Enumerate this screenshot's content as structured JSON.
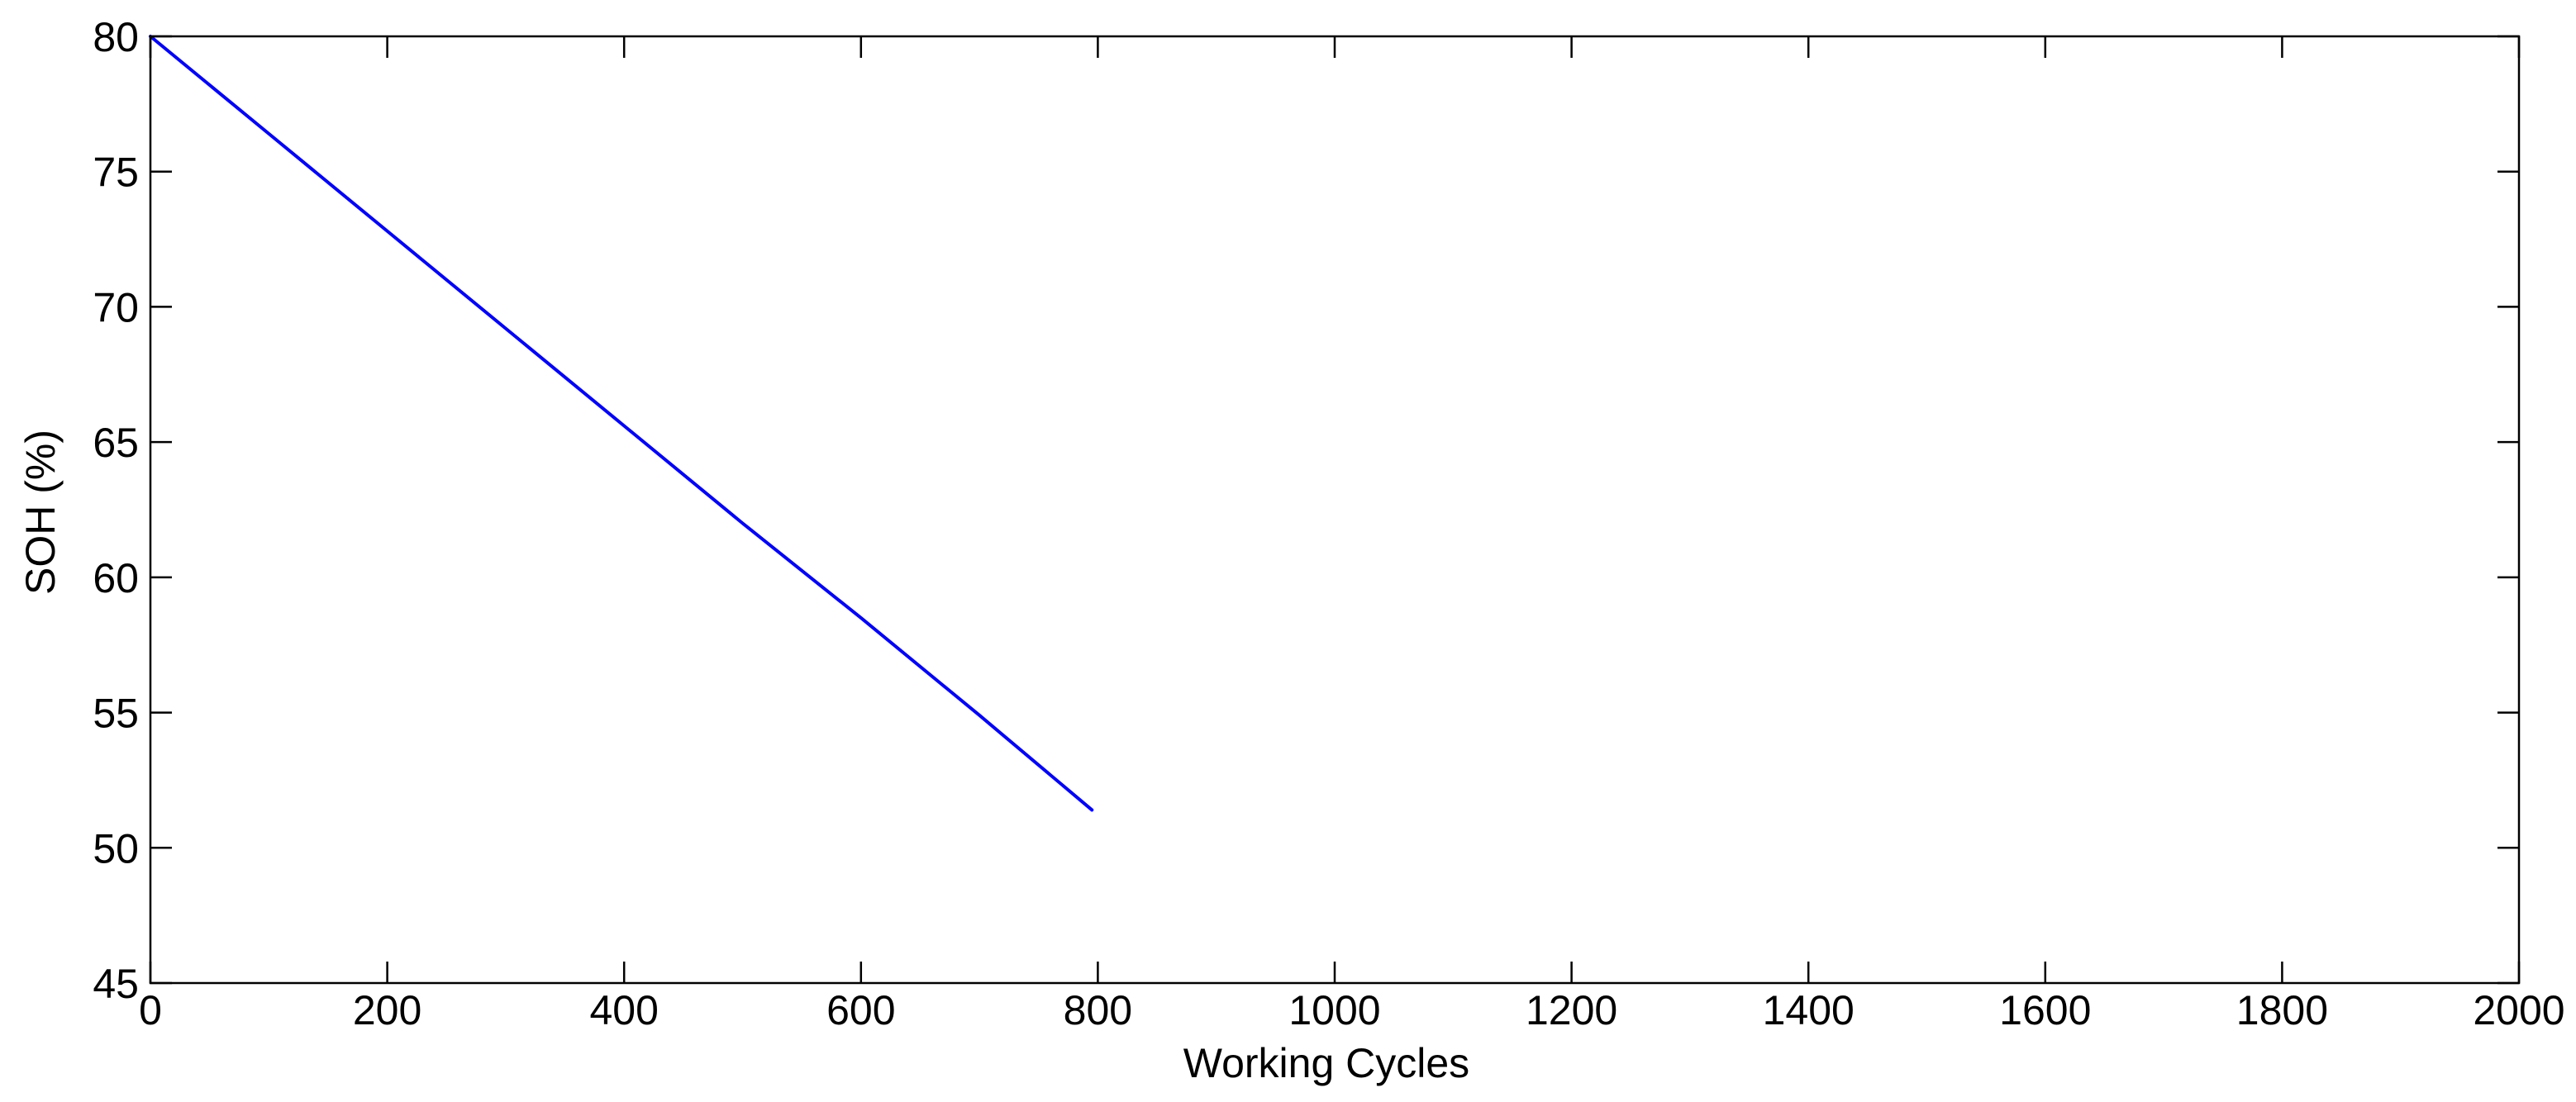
{
  "chart_data": {
    "type": "line",
    "title": "",
    "xlabel": "Working Cycles",
    "ylabel": "SOH (%)",
    "xlim": [
      0,
      2000
    ],
    "ylim": [
      45,
      80
    ],
    "xticks": [
      0,
      200,
      400,
      600,
      800,
      1000,
      1200,
      1400,
      1600,
      1800,
      2000
    ],
    "yticks": [
      45,
      50,
      55,
      60,
      65,
      70,
      75,
      80
    ],
    "grid": false,
    "legend": "none",
    "series": [
      {
        "color": "#0000ff",
        "x": [
          0,
          100,
          200,
          300,
          400,
          500,
          600,
          700,
          795
        ],
        "y": [
          80.0,
          76.4,
          72.8,
          69.2,
          65.6,
          62.0,
          58.5,
          54.9,
          51.4
        ]
      }
    ]
  }
}
